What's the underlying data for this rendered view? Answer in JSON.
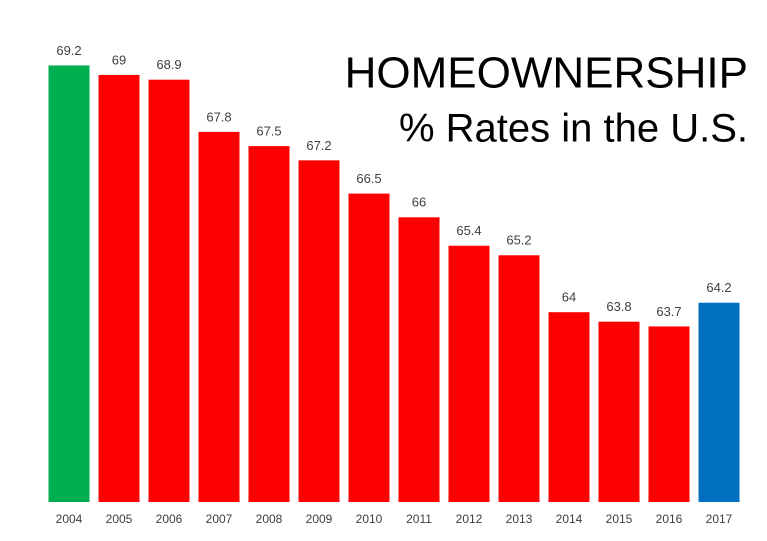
{
  "chart_data": {
    "type": "bar",
    "title": "HOMEOWNERSHIP",
    "subtitle": "% Rates in the U.S.",
    "categories": [
      "2004",
      "2005",
      "2006",
      "2007",
      "2008",
      "2009",
      "2010",
      "2011",
      "2012",
      "2013",
      "2014",
      "2015",
      "2016",
      "2017"
    ],
    "values": [
      69.2,
      69,
      68.9,
      67.8,
      67.5,
      67.2,
      66.5,
      66,
      65.4,
      65.2,
      64,
      63.8,
      63.7,
      64.2
    ],
    "colors": [
      "#00b050",
      "#ff0000",
      "#ff0000",
      "#ff0000",
      "#ff0000",
      "#ff0000",
      "#ff0000",
      "#ff0000",
      "#ff0000",
      "#ff0000",
      "#ff0000",
      "#ff0000",
      "#ff0000",
      "#0070c0"
    ],
    "ylim": [
      60,
      70
    ]
  }
}
